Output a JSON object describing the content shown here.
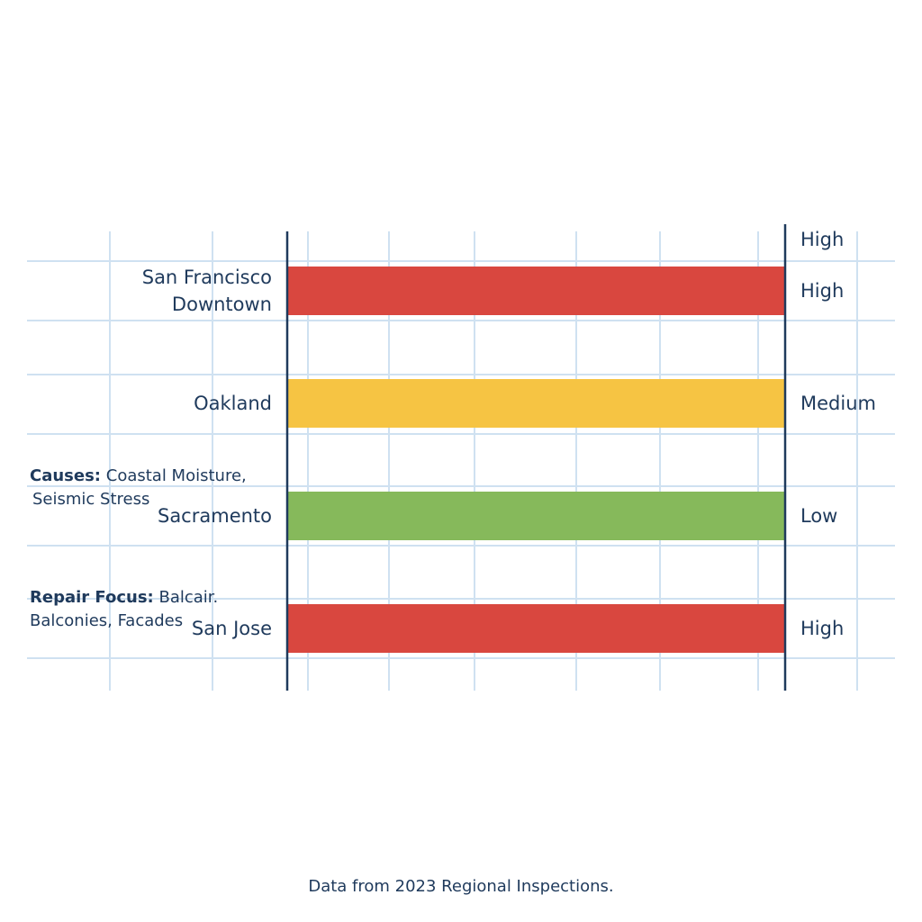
{
  "chart_data": {
    "type": "bar",
    "orientation": "horizontal",
    "scale": [
      "Low",
      "Medium",
      "High"
    ],
    "scale_header": "High",
    "categories": [
      "San Francisco Downtown",
      "Oakland",
      "Sacramento",
      "San Jose"
    ],
    "category_lines": [
      [
        "San Francisco",
        "Downtown"
      ],
      [
        "Oakland"
      ],
      [
        "Sacramento"
      ],
      [
        "San Jose"
      ]
    ],
    "levels": [
      "High",
      "Medium",
      "Low",
      "High"
    ],
    "colors": [
      "#d9473f",
      "#f6c443",
      "#86b95b",
      "#d9473f"
    ],
    "grid": true
  },
  "notes": [
    {
      "label": "Causes:",
      "line1": "Coastal Moisture,",
      "line2": "Seismic Stress"
    },
    {
      "label": "Repair Focus:",
      "line1": "Balcair.",
      "line2": "Balconies, Facades"
    }
  ],
  "footer": "Data from 2023 Regional Inspections."
}
